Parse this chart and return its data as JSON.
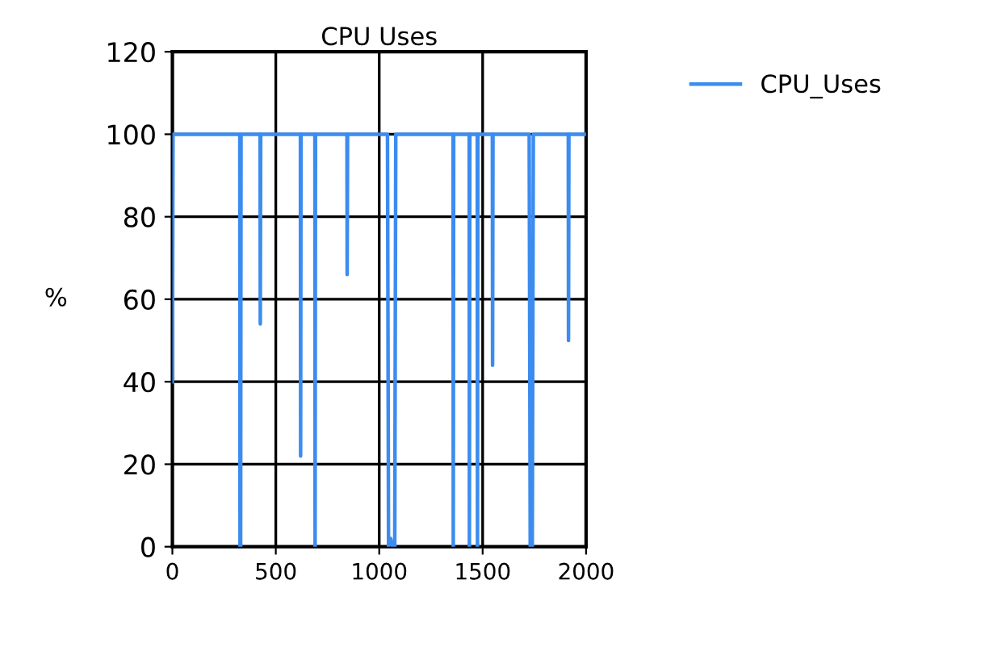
{
  "chart_data": {
    "type": "line",
    "title": "CPU Uses",
    "ylabel": "%",
    "xlim": [
      0,
      2000
    ],
    "xticks": [
      0,
      500,
      1000,
      1500,
      2000
    ],
    "ylim": [
      0,
      120
    ],
    "yticks": [
      0,
      20,
      40,
      60,
      80,
      100,
      120
    ],
    "grid": true,
    "legend": "top right",
    "marker": "none",
    "line_style": "solid",
    "series": [
      {
        "name": "CPU_Uses",
        "color": "#3c8cf0",
        "x": [
          0,
          3,
          326,
          327,
          330,
          332,
          424,
          425,
          427,
          619,
          620,
          622,
          689,
          690,
          692,
          844,
          845,
          847,
          1040,
          1045,
          1055,
          1065,
          1075,
          1080,
          1357,
          1358,
          1360,
          1435,
          1436,
          1438,
          1474,
          1475,
          1477,
          1547,
          1548,
          1550,
          1725,
          1730,
          1740,
          1745,
          1914,
          1915,
          1917,
          2000
        ],
        "values": [
          40,
          100,
          100,
          0,
          0,
          100,
          100,
          54,
          100,
          100,
          22,
          100,
          100,
          0,
          100,
          100,
          66,
          100,
          100,
          0,
          2,
          0,
          0,
          100,
          100,
          0,
          100,
          100,
          0,
          100,
          100,
          0,
          100,
          100,
          44,
          100,
          100,
          0,
          0,
          100,
          100,
          50,
          100,
          100
        ]
      }
    ]
  }
}
